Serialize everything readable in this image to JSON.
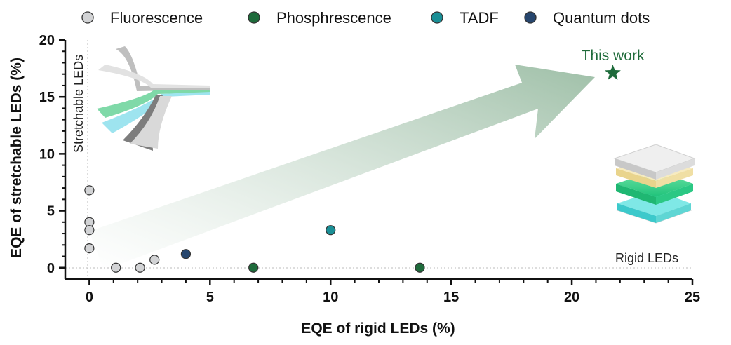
{
  "chart_data": {
    "type": "scatter",
    "title": "",
    "xlabel": "EQE of rigid LEDs  (%)",
    "ylabel": "EQE of stretchable LEDs (%)",
    "xlim": [
      -1,
      25
    ],
    "ylim": [
      -1,
      20
    ],
    "xticks": [
      "0",
      "5",
      "10",
      "15",
      "20",
      "25"
    ],
    "yticks": [
      "0",
      "5",
      "10",
      "15",
      "20"
    ],
    "legend_position": "top",
    "series": [
      {
        "name": "Fluorescence",
        "color": "#d2d3d5",
        "points": [
          [
            0,
            6.8
          ],
          [
            0,
            4.0
          ],
          [
            0,
            3.3
          ],
          [
            0,
            1.7
          ],
          [
            1.1,
            0
          ],
          [
            2.1,
            0
          ],
          [
            2.7,
            0.7
          ]
        ]
      },
      {
        "name": "Phosphrescence",
        "color": "#1e6b3b",
        "points": [
          [
            6.8,
            0
          ],
          [
            13.7,
            0
          ]
        ]
      },
      {
        "name": "TADF",
        "color": "#1a8f96",
        "points": [
          [
            10.0,
            3.3
          ]
        ]
      },
      {
        "name": "Quantum dots",
        "color": "#27466e",
        "points": [
          [
            4.0,
            1.2
          ]
        ]
      }
    ],
    "highlight": {
      "label": "This work",
      "x": 21.7,
      "y": 17.1,
      "marker": "star",
      "color": "#1e6b3b"
    },
    "annotations": {
      "stretchable": "Stretchable LEDs",
      "rigid": "Rigid LEDs"
    },
    "trend_arrow": {
      "from": [
        0,
        2.5
      ],
      "to": [
        21,
        17.5
      ],
      "color": "#8fb59a"
    }
  }
}
